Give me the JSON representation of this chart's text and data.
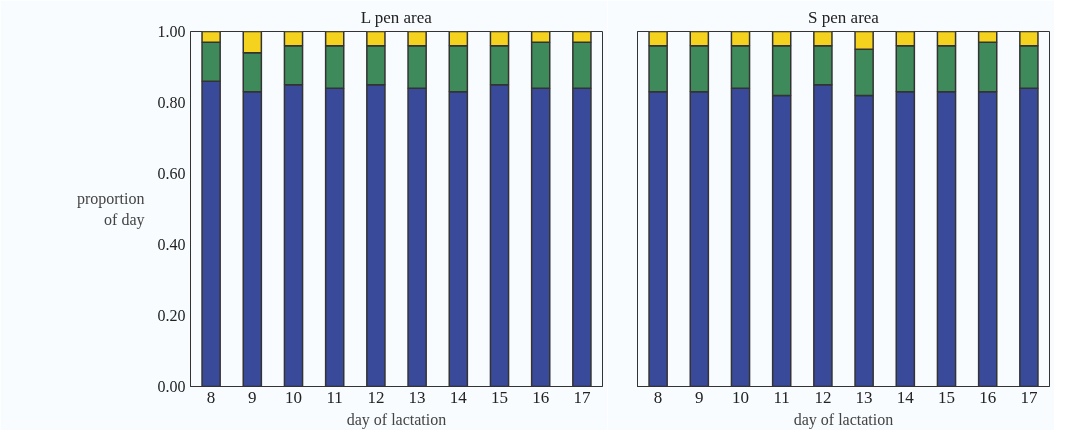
{
  "chart_data": [
    {
      "type": "bar",
      "stacked": true,
      "title": "L pen area",
      "xlabel": "day of lactation",
      "ylabel": "proportion\nof day",
      "categories": [
        "8",
        "9",
        "10",
        "11",
        "12",
        "13",
        "14",
        "15",
        "16",
        "17"
      ],
      "series": [
        {
          "color": "#3a4a9a",
          "values": [
            0.86,
            0.83,
            0.85,
            0.84,
            0.85,
            0.84,
            0.83,
            0.85,
            0.84,
            0.84
          ]
        },
        {
          "color": "#3f8a5a",
          "values": [
            0.11,
            0.11,
            0.11,
            0.12,
            0.11,
            0.12,
            0.13,
            0.11,
            0.13,
            0.13
          ]
        },
        {
          "color": "#f4d21e",
          "values": [
            0.03,
            0.06,
            0.04,
            0.04,
            0.04,
            0.04,
            0.04,
            0.04,
            0.03,
            0.03
          ]
        }
      ],
      "ylim": [
        0,
        1
      ],
      "yticks": [
        {
          "value": 0,
          "label": "0.00"
        },
        {
          "value": 0.2,
          "label": "0.20"
        },
        {
          "value": 0.4,
          "label": "0.40"
        },
        {
          "value": 0.6,
          "label": "0.60"
        },
        {
          "value": 0.8,
          "label": "0.80"
        },
        {
          "value": 1,
          "label": "1.00"
        }
      ],
      "grid": false
    },
    {
      "type": "bar",
      "stacked": true,
      "title": "S pen area",
      "xlabel": "day of lactation",
      "categories": [
        "8",
        "9",
        "10",
        "11",
        "12",
        "13",
        "14",
        "15",
        "16",
        "17"
      ],
      "series": [
        {
          "color": "#3a4a9a",
          "values": [
            0.83,
            0.83,
            0.84,
            0.82,
            0.85,
            0.82,
            0.83,
            0.83,
            0.83,
            0.84
          ]
        },
        {
          "color": "#3f8a5a",
          "values": [
            0.13,
            0.13,
            0.12,
            0.14,
            0.11,
            0.13,
            0.13,
            0.13,
            0.14,
            0.12
          ]
        },
        {
          "color": "#f4d21e",
          "values": [
            0.04,
            0.04,
            0.04,
            0.04,
            0.04,
            0.05,
            0.04,
            0.04,
            0.03,
            0.04
          ]
        }
      ],
      "ylim": [
        0,
        1
      ],
      "yticks": [
        {
          "value": 0,
          "label": null
        },
        {
          "value": 0.2,
          "label": null
        },
        {
          "value": 0.4,
          "label": null
        },
        {
          "value": 0.6,
          "label": null
        },
        {
          "value": 0.8,
          "label": null
        },
        {
          "value": 1,
          "label": null
        }
      ],
      "grid": false,
      "tick_labels": "x"
    }
  ]
}
